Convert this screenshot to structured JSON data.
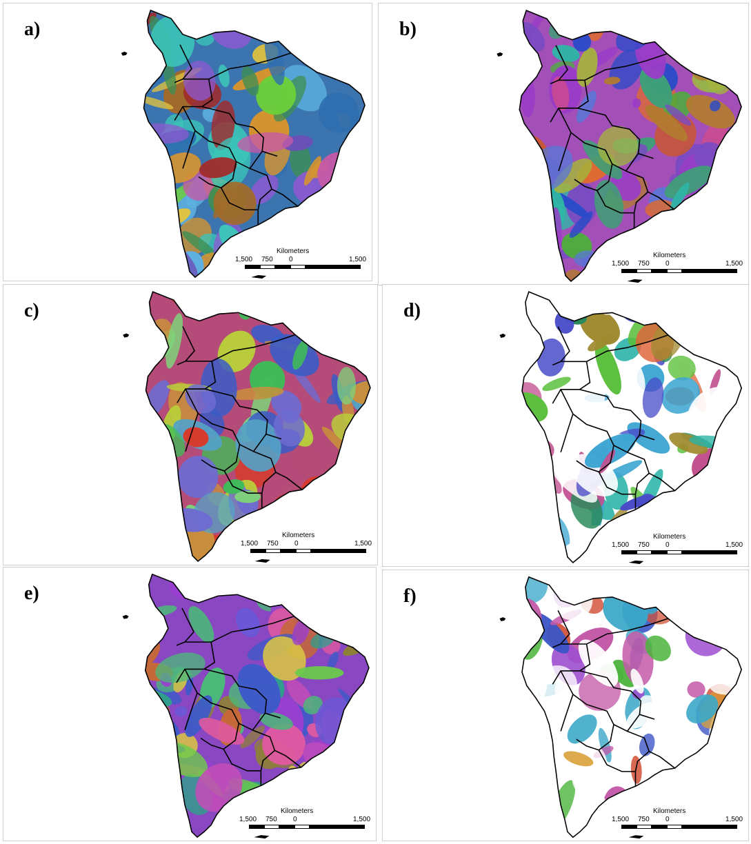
{
  "panels": [
    {
      "label": "a)",
      "palette": [
        "#2f6fb0",
        "#3cc5b8",
        "#a12a2a",
        "#6ccf3a",
        "#a36a2a",
        "#6b4fb8",
        "#c55aa8",
        "#5db0e0",
        "#3e8e53",
        "#d6942f",
        "#8c5ad0",
        "#e0c340"
      ],
      "base": "#3b74ae"
    },
    {
      "label": "b)",
      "palette": [
        "#c9572f",
        "#7a4bc2",
        "#2b4bc8",
        "#4cae3a",
        "#3f9f77",
        "#9a3cc7",
        "#d14b8a",
        "#2fb5a6",
        "#a6b43c",
        "#b37a31",
        "#5a78d6",
        "#e06a2e"
      ],
      "base": "#a24fb8"
    },
    {
      "label": "c)",
      "palette": [
        "#b54d76",
        "#b9cf3a",
        "#3b5cc6",
        "#3fbc58",
        "#7fd27a",
        "#c88f3d",
        "#6e6bd0",
        "#d83a2b",
        "#55a2c6"
      ],
      "base": "#b44b78"
    },
    {
      "label": "d)",
      "palette": [
        "#2cb4a8",
        "#e0643a",
        "#3ea6d2",
        "#5bbf3c",
        "#4a4cc8",
        "#c2508f",
        "#a08a2f",
        "#ffffff",
        "#ffffff",
        "#ffffff",
        "#2a8a5c"
      ],
      "base": "#ffffff"
    },
    {
      "label": "e)",
      "palette": [
        "#9a3fd0",
        "#3e5ac8",
        "#2f9f8a",
        "#4cb87a",
        "#c24db7",
        "#d8c346",
        "#c5683a",
        "#6b58d6",
        "#6acb4a",
        "#df5aa0",
        "#8e7f38"
      ],
      "base": "#8a47c2"
    },
    {
      "label": "f)",
      "palette": [
        "#ffffff",
        "#ffffff",
        "#ffffff",
        "#ffffff",
        "#4cb43c",
        "#3b54c6",
        "#d2533a",
        "#c45aa8",
        "#d9a23a",
        "#3ca8c8",
        "#9e4fd0"
      ],
      "base": "#ffffff"
    }
  ],
  "scale": {
    "title": "Kilometers",
    "ticks": [
      "1,500",
      "750",
      "0",
      "1,500"
    ]
  }
}
